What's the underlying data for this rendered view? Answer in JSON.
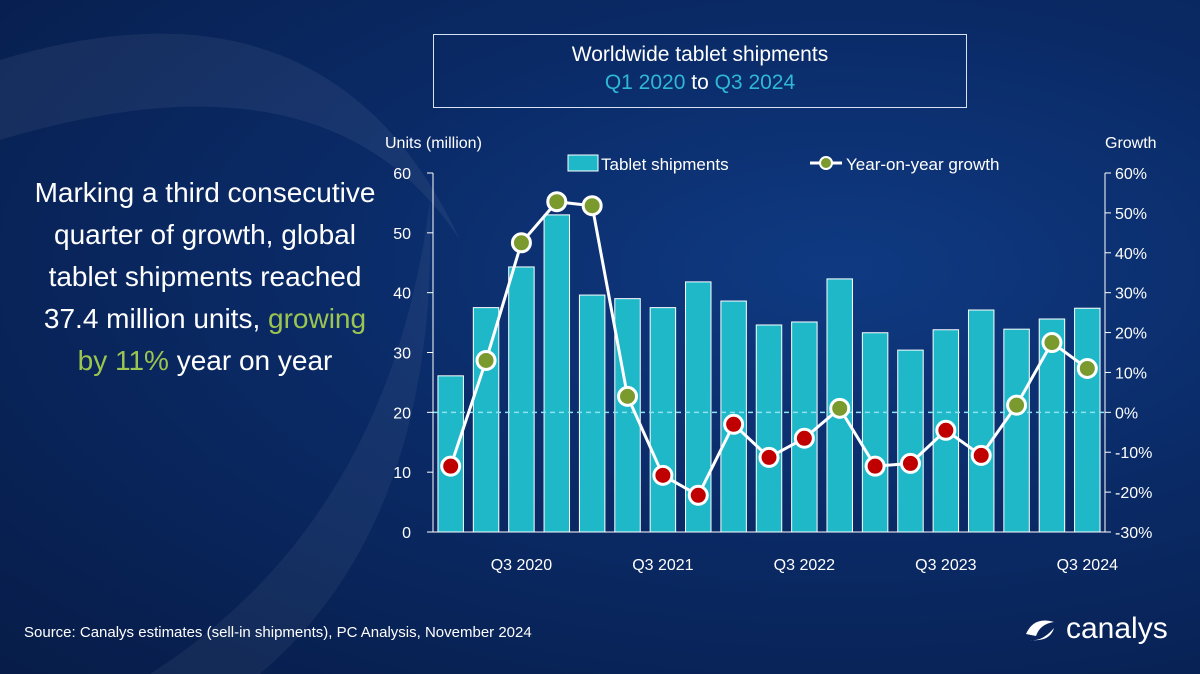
{
  "title": {
    "line1": "Worldwide tablet shipments",
    "start": "Q1 2020",
    "to": "to",
    "end": "Q3 2024"
  },
  "headline": {
    "pre": "Marking a third consecutive quarter of growth, global tablet shipments reached 37.4 million units, ",
    "highlight": "growing by 11%",
    "post": " year on year"
  },
  "source": "Source: Canalys estimates (sell-in shipments), PC Analysis, November 2024",
  "logo": {
    "text": "canalys"
  },
  "colors": {
    "bar": "#1fb8c8",
    "positive": "#7a9a2e",
    "negative": "#c00000",
    "line": "#ffffff",
    "accent": "#2fb7d6",
    "highlight": "#9bc550"
  },
  "chart_data": {
    "type": "bar+line",
    "ylabel": "Units (million)",
    "y2label": "Growth",
    "ylim": [
      0,
      60
    ],
    "y2lim": [
      -30,
      60
    ],
    "yticks": [
      "0",
      "10",
      "20",
      "30",
      "40",
      "50",
      "60"
    ],
    "y2ticks": [
      "-30%",
      "-20%",
      "-10%",
      "0%",
      "10%",
      "20%",
      "30%",
      "40%",
      "50%",
      "60%"
    ],
    "xtick_labels": [
      "Q3 2020",
      "Q3 2021",
      "Q3 2022",
      "Q3 2023",
      "Q3 2024"
    ],
    "categories": [
      "Q1 2020",
      "Q2 2020",
      "Q3 2020",
      "Q4 2020",
      "Q1 2021",
      "Q2 2021",
      "Q3 2021",
      "Q4 2021",
      "Q1 2022",
      "Q2 2022",
      "Q3 2022",
      "Q4 2022",
      "Q1 2023",
      "Q2 2023",
      "Q3 2023",
      "Q4 2023",
      "Q1 2024",
      "Q2 2024",
      "Q3 2024"
    ],
    "legend_position": "top",
    "series": [
      {
        "name": "Tablet shipments",
        "type": "bar",
        "axis": "left",
        "values": [
          26.1,
          37.5,
          44.3,
          53.0,
          39.6,
          39.0,
          37.5,
          41.8,
          38.6,
          34.6,
          35.1,
          42.3,
          33.3,
          30.4,
          33.8,
          37.1,
          33.9,
          35.6,
          37.4
        ]
      },
      {
        "name": "Year-on-year growth",
        "type": "line",
        "axis": "right",
        "unit": "%",
        "values": [
          -13.5,
          13,
          42.5,
          52.8,
          51.8,
          4,
          -15.8,
          -20.8,
          -3,
          -11.3,
          -6.5,
          1,
          -13.5,
          -12.8,
          -4.5,
          -10.8,
          1.8,
          17.5,
          11
        ]
      }
    ]
  }
}
